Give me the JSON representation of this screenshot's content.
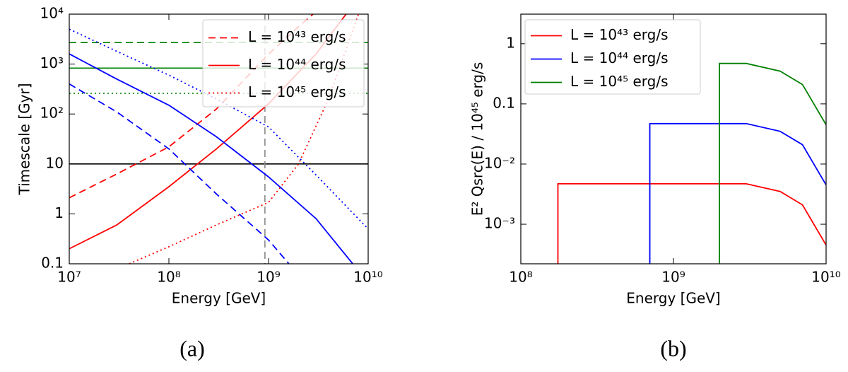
{
  "chart_data": [
    {
      "type": "line",
      "caption": "(a)",
      "x_label": "Energy [GeV]",
      "y_label": "Timescale [Gyr]",
      "xscale": "log",
      "yscale": "log",
      "legend": "upper right",
      "xlim": [
        10000000.0,
        10000000000.0
      ],
      "ylim": [
        0.1,
        10000
      ],
      "xticks": [
        {
          "value": 10000000.0,
          "label": "10⁷"
        },
        {
          "value": 100000000.0,
          "label": "10⁸"
        },
        {
          "value": 1000000000.0,
          "label": "10⁹"
        },
        {
          "value": 10000000000.0,
          "label": "10¹⁰"
        }
      ],
      "yticks": [
        0.1,
        1,
        10,
        {
          "value": 100,
          "label": "10²"
        },
        {
          "value": 1000,
          "label": "10³"
        },
        {
          "value": 10000,
          "label": "10⁴"
        }
      ],
      "series": [
        {
          "name": "L = 10⁴³ erg/s",
          "color": "#ff0000",
          "dash": "dashed",
          "x": [
            10000000.0,
            30000000.0,
            100000000.0,
            300000000.0,
            1000000000.0,
            2000000000.0,
            2800000000.0
          ],
          "values": [
            2.1,
            6.3,
            22,
            126,
            1580,
            5600,
            10000
          ]
        },
        {
          "name": "L = 10⁴⁴ erg/s",
          "color": "#ff0000",
          "dash": "solid",
          "x": [
            10000000.0,
            30000000.0,
            100000000.0,
            300000000.0,
            1000000000.0,
            3000000000.0,
            6000000000.0
          ],
          "values": [
            0.2,
            0.6,
            3.5,
            20,
            160,
            1600,
            10000
          ]
        },
        {
          "name": "L = 10⁴⁵ erg/s",
          "color": "#ff0000",
          "dash": "dotted",
          "x": [
            40000000.0,
            100000000.0,
            300000000.0,
            1000000000.0,
            2000000000.0,
            4000000000.0,
            8000000000.0
          ],
          "values": [
            0.1,
            0.22,
            0.6,
            1.7,
            10,
            200,
            10000
          ]
        },
        {
          "color": "#0000ff",
          "dash": "dashed",
          "x": [
            10000000.0,
            30000000.0,
            100000000.0,
            300000000.0,
            1000000000.0,
            1600000000.0
          ],
          "values": [
            400,
            110,
            20,
            2.5,
            0.3,
            0.1
          ]
        },
        {
          "color": "#0000ff",
          "dash": "solid",
          "x": [
            10000000.0,
            30000000.0,
            100000000.0,
            300000000.0,
            1000000000.0,
            3000000000.0,
            7000000000.0
          ],
          "values": [
            1600,
            500,
            150,
            35,
            5.5,
            0.8,
            0.1
          ]
        },
        {
          "color": "#0000ff",
          "dash": "dotted",
          "x": [
            10000000.0,
            30000000.0,
            100000000.0,
            300000000.0,
            1000000000.0,
            3000000000.0,
            10000000000.0
          ],
          "values": [
            5000,
            1800,
            600,
            200,
            55,
            6,
            0.5
          ]
        }
      ],
      "hlines": [
        {
          "y": 2700,
          "color": "#008000",
          "dash": "dashed"
        },
        {
          "y": 830,
          "color": "#008000",
          "dash": "solid"
        },
        {
          "y": 260,
          "color": "#008000",
          "dash": "dotted"
        },
        {
          "y": 10,
          "color": "#000000",
          "dash": "solid"
        }
      ],
      "vlines": [
        {
          "x": 920000000.0,
          "color": "#888888",
          "dash": "dashed"
        }
      ]
    },
    {
      "type": "line",
      "caption": "(b)",
      "x_label": "Energy [GeV]",
      "y_label": "E² Qsrc(E) / 10⁴⁵ erg/s",
      "xscale": "log",
      "yscale": "log",
      "legend": "upper left",
      "xlim": [
        100000000.0,
        10000000000.0
      ],
      "ylim": [
        0.00022,
        3.1
      ],
      "xticks": [
        {
          "value": 100000000.0,
          "label": "10⁸"
        },
        {
          "value": 1000000000.0,
          "label": "10⁹"
        },
        {
          "value": 10000000000.0,
          "label": "10¹⁰"
        }
      ],
      "yticks": [
        {
          "value": 0.001,
          "label": "10⁻³"
        },
        {
          "value": 0.01,
          "label": "10⁻²"
        },
        0.1,
        1
      ],
      "series": [
        {
          "name": "L = 10⁴³ erg/s",
          "color": "#ff0000",
          "dash": "solid",
          "x": [
            175000000.0,
            175000000.0,
            3000000000.0,
            5000000000.0,
            7000000000.0,
            10000000000.0
          ],
          "values": [
            0,
            0.0047,
            0.0047,
            0.0035,
            0.0021,
            0.00045
          ]
        },
        {
          "name": "L = 10⁴⁴ erg/s",
          "color": "#0000ff",
          "dash": "solid",
          "x": [
            700000000.0,
            700000000.0,
            3000000000.0,
            5000000000.0,
            7000000000.0,
            10000000000.0
          ],
          "values": [
            0,
            0.047,
            0.047,
            0.035,
            0.021,
            0.0045
          ]
        },
        {
          "name": "L = 10⁴⁵ erg/s",
          "color": "#008000",
          "dash": "solid",
          "x": [
            2000000000.0,
            2000000000.0,
            3000000000.0,
            5000000000.0,
            7000000000.0,
            10000000000.0
          ],
          "values": [
            0,
            0.47,
            0.47,
            0.35,
            0.21,
            0.045
          ]
        }
      ]
    }
  ]
}
